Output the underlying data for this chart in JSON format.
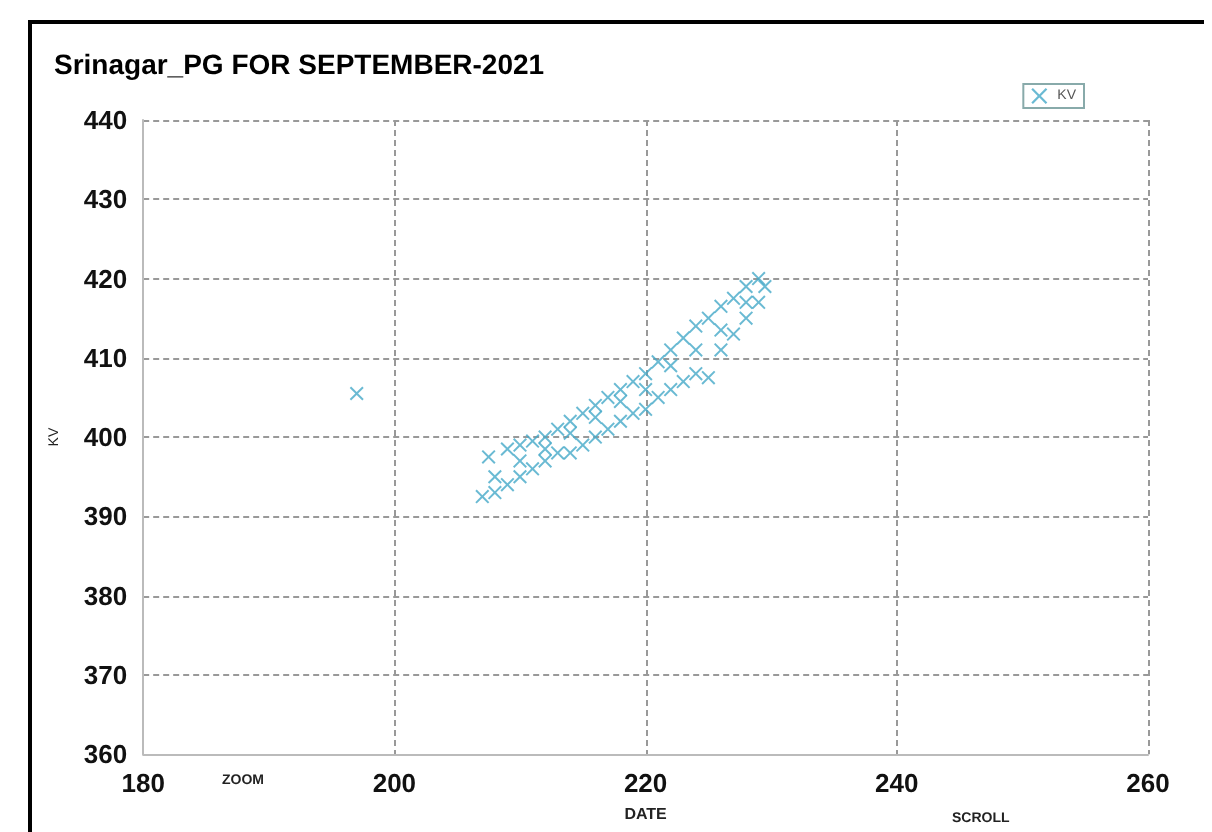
{
  "chart_data": {
    "type": "scatter",
    "title": "Srinagar_PG FOR SEPTEMBER-2021",
    "xlabel": "DATE",
    "ylabel": "KV",
    "annotations": [
      "ZOOM",
      "SCROLL"
    ],
    "series": [
      {
        "name": "KV",
        "color": "#45a9c8",
        "x": [
          197,
          207,
          208,
          209,
          210,
          211,
          212,
          213,
          214,
          215,
          216,
          217,
          218,
          219,
          220,
          221,
          222,
          223,
          224,
          225,
          226,
          227,
          228,
          229,
          207.5,
          209,
          210,
          211,
          212,
          213,
          214,
          215,
          216,
          217,
          218,
          219,
          220,
          221,
          222,
          223,
          224,
          225,
          226,
          227,
          228,
          229,
          208,
          210,
          212,
          214,
          216,
          218,
          220,
          222,
          224,
          226,
          228,
          229.5
        ],
        "values": [
          405.5,
          392.5,
          393,
          394,
          395,
          396,
          397,
          398,
          398,
          399,
          400,
          401,
          402,
          403,
          403.5,
          405,
          406,
          407,
          408,
          407.5,
          411,
          413,
          415,
          417,
          397.5,
          398.5,
          399,
          399.5,
          400,
          401,
          402,
          403,
          404,
          405,
          406,
          407,
          408,
          409.5,
          411,
          412.5,
          414,
          415,
          416.5,
          417.5,
          419,
          420,
          395,
          397,
          398.5,
          400.5,
          402.5,
          404.5,
          406,
          409,
          411,
          413.5,
          417,
          419
        ]
      }
    ],
    "xlim": [
      180,
      260
    ],
    "xticks": [
      180,
      200,
      220,
      240,
      260
    ],
    "ylim": [
      360,
      440
    ],
    "yticks": [
      360,
      370,
      380,
      390,
      400,
      410,
      420,
      430,
      440
    ],
    "grid": true,
    "legend": "top right",
    "marker": "cross"
  }
}
